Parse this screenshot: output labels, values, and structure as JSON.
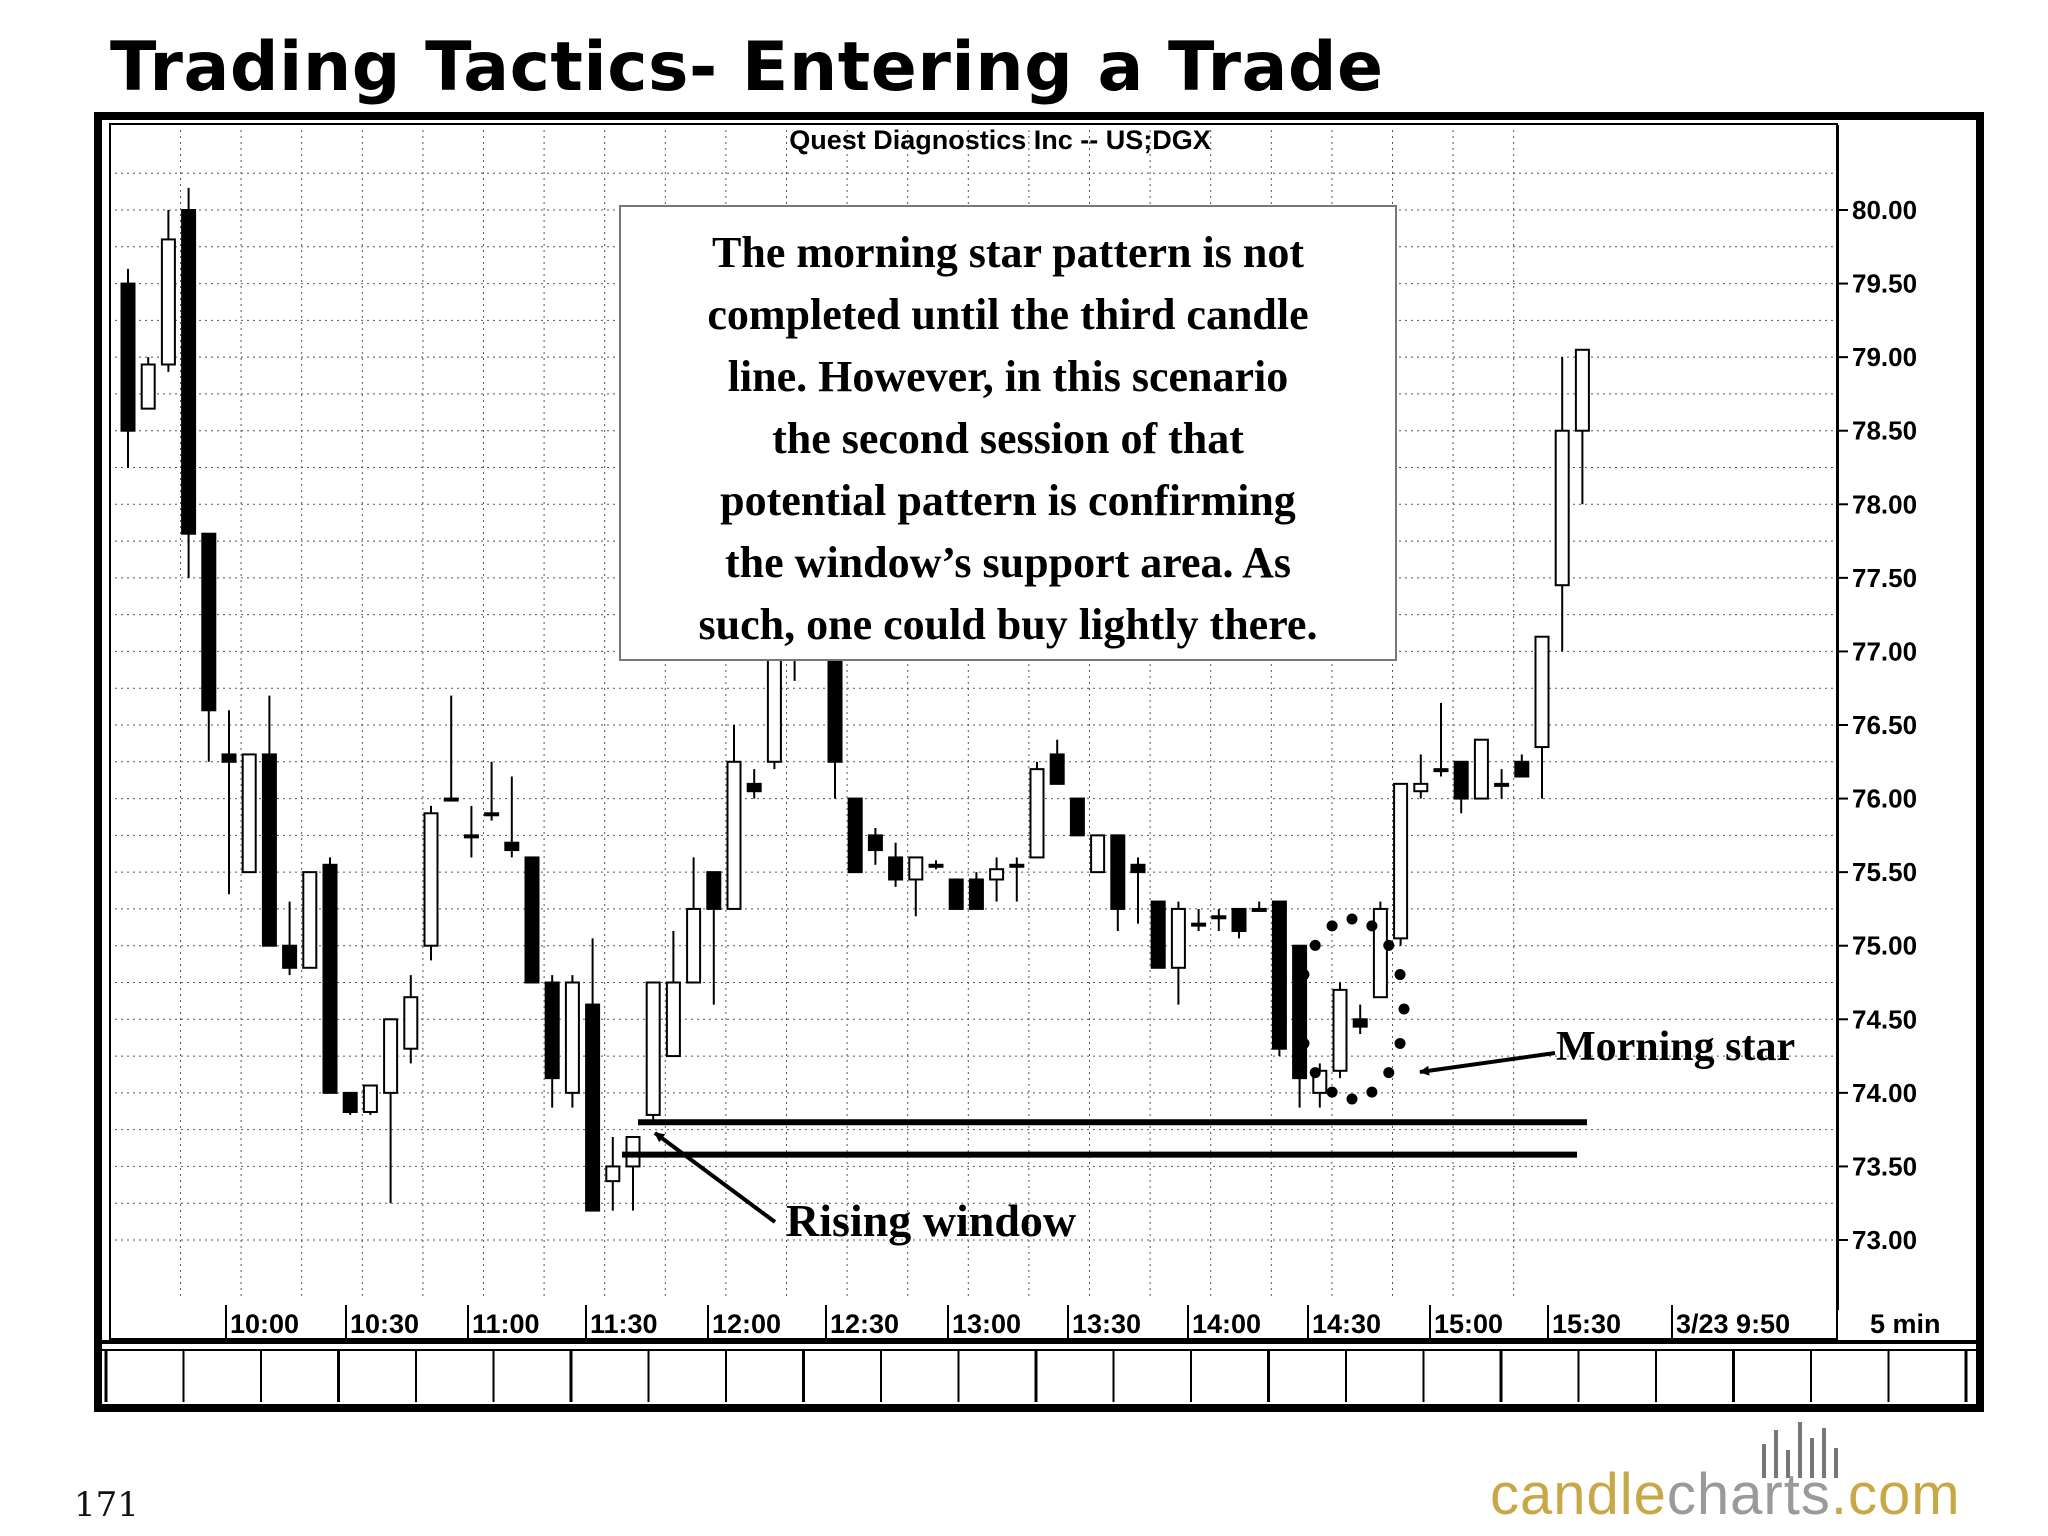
{
  "slide": {
    "title": "Trading Tactics- Entering a Trade",
    "page_number": "171",
    "logo": {
      "part1": "candle",
      "part2": "charts",
      "part3": ".com"
    }
  },
  "chart_data": {
    "type": "candlestick",
    "title": "Quest  Diagnostics  Inc  --  US;DGX",
    "interval_label": "5  min",
    "ylim": [
      72.6,
      80.6
    ],
    "y_ticks": [
      "80.00",
      "79.50",
      "79.00",
      "78.50",
      "78.00",
      "77.50",
      "77.00",
      "76.50",
      "76.00",
      "75.50",
      "75.00",
      "74.50",
      "74.00",
      "73.50",
      "73.00"
    ],
    "x_tick_labels": [
      "10:00",
      "10:30",
      "11:00",
      "11:30",
      "12:00",
      "12:30",
      "13:00",
      "13:30",
      "14:00",
      "14:30",
      "15:00",
      "15:30",
      "3/23  9:50"
    ],
    "candles": [
      {
        "time": "9:25",
        "open": 79.5,
        "high": 79.6,
        "low": 78.25,
        "close": 78.5
      },
      {
        "time": "9:30",
        "open": 78.65,
        "high": 79.0,
        "low": 78.65,
        "close": 78.95
      },
      {
        "time": "9:35",
        "open": 78.95,
        "high": 80.0,
        "low": 78.9,
        "close": 79.8
      },
      {
        "time": "9:40",
        "open": 80.0,
        "high": 80.15,
        "low": 77.5,
        "close": 77.8
      },
      {
        "time": "9:45",
        "open": 77.8,
        "high": 77.8,
        "low": 76.25,
        "close": 76.6
      },
      {
        "time": "9:50",
        "open": 76.3,
        "high": 76.6,
        "low": 75.35,
        "close": 76.25
      },
      {
        "time": "9:55",
        "open": 75.5,
        "high": 76.3,
        "low": 75.5,
        "close": 76.3
      },
      {
        "time": "10:00",
        "open": 76.3,
        "high": 76.7,
        "low": 75.0,
        "close": 75.0
      },
      {
        "time": "10:05",
        "open": 75.0,
        "high": 75.3,
        "low": 74.8,
        "close": 74.85
      },
      {
        "time": "10:10",
        "open": 74.85,
        "high": 75.5,
        "low": 74.85,
        "close": 75.5
      },
      {
        "time": "10:15",
        "open": 75.55,
        "high": 75.6,
        "low": 74.0,
        "close": 74.0
      },
      {
        "time": "10:20",
        "open": 74.0,
        "high": 74.0,
        "low": 73.85,
        "close": 73.87
      },
      {
        "time": "10:25",
        "open": 73.87,
        "high": 74.0,
        "low": 73.85,
        "close": 74.05
      },
      {
        "time": "10:30",
        "open": 74.0,
        "high": 74.5,
        "low": 73.25,
        "close": 74.5
      },
      {
        "time": "10:35",
        "open": 74.3,
        "high": 74.8,
        "low": 74.2,
        "close": 74.65
      },
      {
        "time": "10:40",
        "open": 75.0,
        "high": 75.95,
        "low": 74.9,
        "close": 75.9
      },
      {
        "time": "10:45",
        "open": 76.0,
        "high": 76.7,
        "low": 76.0,
        "close": 76.0
      },
      {
        "time": "10:50",
        "open": 75.75,
        "high": 75.95,
        "low": 75.6,
        "close": 75.75
      },
      {
        "time": "10:55",
        "open": 75.9,
        "high": 76.25,
        "low": 75.85,
        "close": 75.9
      },
      {
        "time": "11:00",
        "open": 75.7,
        "high": 76.15,
        "low": 75.6,
        "close": 75.65
      },
      {
        "time": "11:05",
        "open": 75.6,
        "high": 75.6,
        "low": 74.75,
        "close": 74.75
      },
      {
        "time": "11:10",
        "open": 74.75,
        "high": 74.8,
        "low": 73.9,
        "close": 74.1
      },
      {
        "time": "11:15",
        "open": 74.0,
        "high": 74.8,
        "low": 73.9,
        "close": 74.75
      },
      {
        "time": "11:20",
        "open": 74.6,
        "high": 75.05,
        "low": 73.2,
        "close": 73.2
      },
      {
        "time": "11:25",
        "open": 73.4,
        "high": 73.7,
        "low": 73.2,
        "close": 73.5
      },
      {
        "time": "11:30",
        "open": 73.5,
        "high": 73.7,
        "low": 73.2,
        "close": 73.7
      },
      {
        "time": "11:35",
        "open": 73.85,
        "high": 74.75,
        "low": 73.8,
        "close": 74.75
      },
      {
        "time": "11:40",
        "open": 74.25,
        "high": 75.1,
        "low": 74.25,
        "close": 74.75
      },
      {
        "time": "11:45",
        "open": 74.75,
        "high": 75.6,
        "low": 74.75,
        "close": 75.25
      },
      {
        "time": "11:50",
        "open": 75.5,
        "high": 75.5,
        "low": 74.6,
        "close": 75.25
      },
      {
        "time": "11:55",
        "open": 75.25,
        "high": 76.5,
        "low": 75.25,
        "close": 76.25
      },
      {
        "time": "12:00",
        "open": 76.1,
        "high": 76.2,
        "low": 76.0,
        "close": 76.05
      },
      {
        "time": "12:05",
        "open": 76.25,
        "high": 77.3,
        "low": 76.2,
        "close": 77.3
      },
      {
        "time": "12:10",
        "open": 77.5,
        "high": 77.8,
        "low": 76.8,
        "close": 77.2
      },
      {
        "time": "12:15",
        "open": 77.4,
        "high": 77.6,
        "low": 77.1,
        "close": 77.2
      },
      {
        "time": "12:20",
        "open": 77.2,
        "high": 77.3,
        "low": 76.0,
        "close": 76.25
      },
      {
        "time": "12:25",
        "open": 76.0,
        "high": 76.0,
        "low": 75.5,
        "close": 75.5
      },
      {
        "time": "12:30",
        "open": 75.75,
        "high": 75.8,
        "low": 75.55,
        "close": 75.65
      },
      {
        "time": "12:35",
        "open": 75.6,
        "high": 75.7,
        "low": 75.4,
        "close": 75.45
      },
      {
        "time": "12:40",
        "open": 75.45,
        "high": 75.6,
        "low": 75.2,
        "close": 75.6
      },
      {
        "time": "12:45",
        "open": 75.55,
        "high": 75.58,
        "low": 75.52,
        "close": 75.55
      },
      {
        "time": "12:50",
        "open": 75.45,
        "high": 75.45,
        "low": 75.25,
        "close": 75.25
      },
      {
        "time": "12:55",
        "open": 75.45,
        "high": 75.5,
        "low": 75.25,
        "close": 75.25
      },
      {
        "time": "13:00",
        "open": 75.45,
        "high": 75.6,
        "low": 75.3,
        "close": 75.52
      },
      {
        "time": "13:05",
        "open": 75.55,
        "high": 75.6,
        "low": 75.3,
        "close": 75.55
      },
      {
        "time": "13:10",
        "open": 75.6,
        "high": 76.25,
        "low": 75.6,
        "close": 76.2
      },
      {
        "time": "13:15",
        "open": 76.3,
        "high": 76.4,
        "low": 76.1,
        "close": 76.1
      },
      {
        "time": "13:20",
        "open": 76.0,
        "high": 76.0,
        "low": 75.75,
        "close": 75.75
      },
      {
        "time": "13:25",
        "open": 75.5,
        "high": 75.75,
        "low": 75.5,
        "close": 75.75
      },
      {
        "time": "13:30",
        "open": 75.75,
        "high": 75.75,
        "low": 75.1,
        "close": 75.25
      },
      {
        "time": "13:35",
        "open": 75.55,
        "high": 75.6,
        "low": 75.15,
        "close": 75.5
      },
      {
        "time": "13:40",
        "open": 75.3,
        "high": 75.3,
        "low": 74.9,
        "close": 74.85
      },
      {
        "time": "13:45",
        "open": 74.85,
        "high": 75.3,
        "low": 74.6,
        "close": 75.25
      },
      {
        "time": "13:50",
        "open": 75.15,
        "high": 75.25,
        "low": 75.1,
        "close": 75.15
      },
      {
        "time": "13:55",
        "open": 75.2,
        "high": 75.25,
        "low": 75.1,
        "close": 75.2
      },
      {
        "time": "14:00",
        "open": 75.25,
        "high": 75.25,
        "low": 75.05,
        "close": 75.1
      },
      {
        "time": "14:05",
        "open": 75.25,
        "high": 75.3,
        "low": 75.25,
        "close": 75.25
      },
      {
        "time": "14:10",
        "open": 75.3,
        "high": 75.3,
        "low": 74.25,
        "close": 74.3
      },
      {
        "time": "14:15",
        "open": 75.0,
        "high": 75.0,
        "low": 73.9,
        "close": 74.1
      },
      {
        "time": "14:20",
        "open": 74.0,
        "high": 74.2,
        "low": 73.9,
        "close": 74.15
      },
      {
        "time": "14:25",
        "open": 74.15,
        "high": 74.75,
        "low": 74.1,
        "close": 74.7
      },
      {
        "time": "14:30",
        "open": 74.5,
        "high": 74.6,
        "low": 74.4,
        "close": 74.45
      },
      {
        "time": "14:35",
        "open": 74.65,
        "high": 75.3,
        "low": 74.65,
        "close": 75.25
      },
      {
        "time": "14:40",
        "open": 75.05,
        "high": 76.1,
        "low": 75.0,
        "close": 76.1
      },
      {
        "time": "14:45",
        "open": 76.05,
        "high": 76.3,
        "low": 76.0,
        "close": 76.1
      },
      {
        "time": "14:50",
        "open": 76.2,
        "high": 76.65,
        "low": 76.15,
        "close": 76.2
      },
      {
        "time": "14:55",
        "open": 76.25,
        "high": 76.25,
        "low": 75.9,
        "close": 76.0
      },
      {
        "time": "15:00",
        "open": 76.0,
        "high": 76.4,
        "low": 76.0,
        "close": 76.4
      },
      {
        "time": "15:05",
        "open": 76.1,
        "high": 76.2,
        "low": 76.0,
        "close": 76.1
      },
      {
        "time": "15:10",
        "open": 76.25,
        "high": 76.3,
        "low": 76.15,
        "close": 76.15
      },
      {
        "time": "15:15",
        "open": 76.35,
        "high": 77.1,
        "low": 76.0,
        "close": 77.1
      },
      {
        "time": "15:20",
        "open": 77.45,
        "high": 79.0,
        "low": 77.0,
        "close": 78.5
      },
      {
        "time": "15:25",
        "open": 78.5,
        "high": 79.05,
        "low": 78.0,
        "close": 79.05
      }
    ],
    "support_lines": [
      73.8,
      73.58
    ],
    "annotations": {
      "textbox": [
        "The morning star pattern is not",
        "completed until the third candle",
        "line. However, in this scenario",
        "the second session of that",
        "potential pattern is confirming",
        "the window’s support area. As",
        "such, one could buy lightly there."
      ],
      "rising_window": "Rising window",
      "morning_star": "Morning star"
    }
  }
}
